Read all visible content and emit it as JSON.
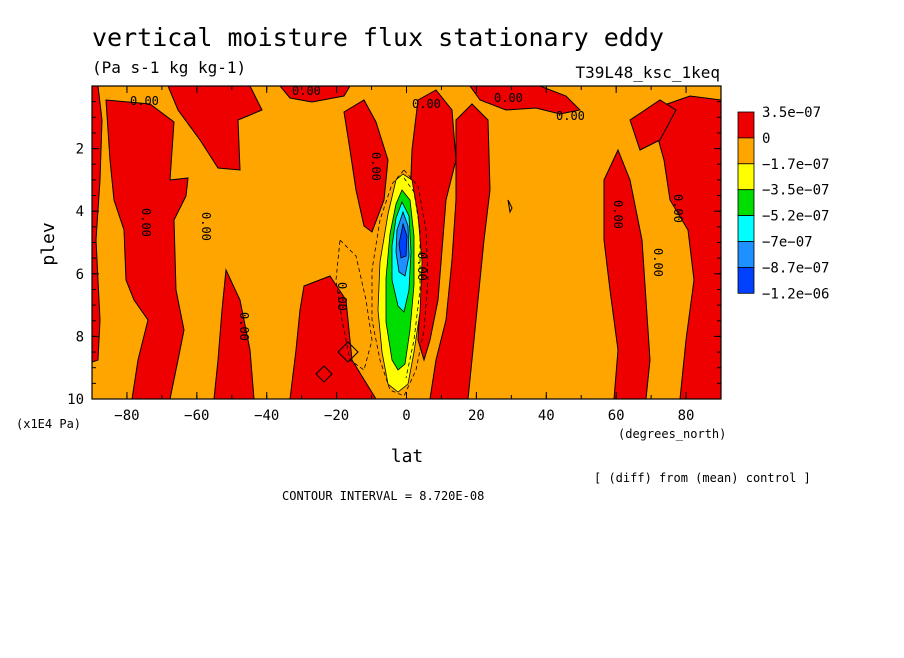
{
  "chart_data": {
    "type": "heatmap",
    "title": "vertical moisture flux stationary eddy",
    "subtitle": "(Pa s-1 kg kg-1)",
    "run_label": "T39L48_ksc_1keq",
    "xlabel": "lat",
    "x_units": "(degrees_north)",
    "ylabel": "plev",
    "y_units": "(x1E4 Pa)",
    "xlim": [
      -90,
      90
    ],
    "ylim": [
      0,
      10
    ],
    "y_reversed": true,
    "x_ticks": [
      -80,
      -60,
      -40,
      -20,
      0,
      20,
      40,
      60,
      80
    ],
    "x_tick_labels": [
      "−80",
      "−60",
      "−40",
      "−20",
      "0",
      "20",
      "40",
      "60",
      "80"
    ],
    "y_ticks": [
      2,
      4,
      6,
      8,
      10
    ],
    "y_tick_labels": [
      "2",
      "4",
      "6",
      "8",
      "10"
    ],
    "colorbar": {
      "colors": [
        "#ee0000",
        "#ffa500",
        "#ffff00",
        "#00dd00",
        "#00ffff",
        "#1e90ff",
        "#0040ff"
      ],
      "labels": [
        "3.5e−07",
        "0",
        "−1.7e−07",
        "−3.5e−07",
        "−5.2e−07",
        "−7e−07",
        "−8.7e−07",
        "−1.2e−06"
      ]
    },
    "contour_labels": [
      "0.00",
      "0.00",
      "0.00",
      "0.00",
      "0.00",
      "0.00",
      "0.00",
      "0.00",
      "0.00",
      "0.00",
      "0.00",
      "0.00",
      "0.00",
      "0.00"
    ],
    "note_diff": "[ (diff) from (mean) control ]",
    "contour_interval": "CONTOUR INTERVAL = 8.720E-08"
  }
}
